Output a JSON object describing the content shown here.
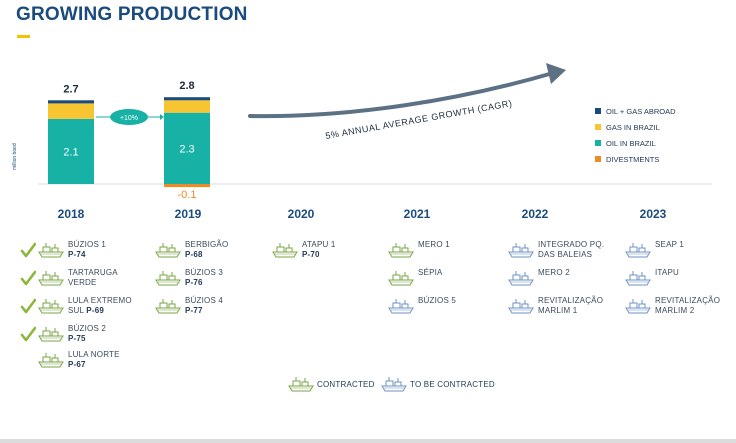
{
  "page": {
    "title": "GROWING PRODUCTION"
  },
  "colors": {
    "oil_brazil": "#18b1a5",
    "gas_brazil": "#f7c531",
    "oil_gas_abroad": "#1a4b7c",
    "divestments": "#f08a22",
    "arrow": "#5d7185",
    "check": "#8db63c",
    "ship_contracted": "#7aa644",
    "ship_to_be": "#6f93c4"
  },
  "chart_data": {
    "type": "bar",
    "stacked": true,
    "categories": [
      "2018",
      "2019"
    ],
    "ylabel": "million boed",
    "series": [
      {
        "name": "OIL IN BRAZIL",
        "color": "#18b1a5",
        "values": [
          2.1,
          2.3
        ],
        "labels": [
          "2.1",
          "2.3"
        ]
      },
      {
        "name": "GAS IN BRAZIL",
        "color": "#f7c531",
        "values": [
          0.5,
          0.4
        ]
      },
      {
        "name": "OIL + GAS ABROAD",
        "color": "#1a4b7c",
        "values": [
          0.1,
          0.1
        ]
      },
      {
        "name": "DIVESTMENTS",
        "color": "#f08a22",
        "values": [
          0,
          -0.1
        ],
        "labels": [
          "",
          "-0.1"
        ]
      }
    ],
    "totals": [
      "2.7",
      "2.8"
    ],
    "growth_badge": "+10%",
    "trend_label": "5% ANNUAL AVERAGE GROWTH (CAGR)",
    "legend": [
      "OIL + GAS ABROAD",
      "GAS IN BRAZIL",
      "OIL IN BRAZIL",
      "DIVESTMENTS"
    ],
    "legend_position": "right"
  },
  "years": [
    "2018",
    "2019",
    "2020",
    "2021",
    "2022",
    "2023"
  ],
  "projects": [
    {
      "year": "2018",
      "name": "BÚZIOS 1",
      "unit": "P-74",
      "status": "contracted",
      "check": true
    },
    {
      "year": "2018",
      "name": "TARTARUGA",
      "name2": "VERDE",
      "status": "contracted",
      "check": true
    },
    {
      "year": "2018",
      "name": "LULA EXTREMO",
      "name2": "SUL",
      "unit": "P-69",
      "status": "contracted",
      "check": true
    },
    {
      "year": "2018",
      "name": "BÚZIOS 2",
      "unit": "P-75",
      "status": "contracted",
      "check": true
    },
    {
      "year": "2018",
      "name": "LULA NORTE",
      "unit": "P-67",
      "status": "contracted",
      "check": false
    },
    {
      "year": "2019",
      "name": "BERBIGÃO",
      "unit": "P-68",
      "status": "contracted"
    },
    {
      "year": "2019",
      "name": "BÚZIOS 3",
      "unit": "P-76",
      "status": "contracted"
    },
    {
      "year": "2019",
      "name": "BÚZIOS 4",
      "unit": "P-77",
      "status": "contracted"
    },
    {
      "year": "2020",
      "name": "ATAPU 1",
      "unit": "P-70",
      "status": "contracted"
    },
    {
      "year": "2021",
      "name": "MERO 1",
      "status": "contracted"
    },
    {
      "year": "2021",
      "name": "SÉPIA",
      "status": "contracted"
    },
    {
      "year": "2021",
      "name": "BÚZIOS 5",
      "status": "to_be_contracted"
    },
    {
      "year": "2022",
      "name": "INTEGRADO PQ.",
      "name2": "DAS BALEIAS",
      "status": "to_be_contracted"
    },
    {
      "year": "2022",
      "name": "MERO 2",
      "status": "to_be_contracted"
    },
    {
      "year": "2022",
      "name": "REVITALIZAÇÃO",
      "name2": "MARLIM 1",
      "status": "to_be_contracted"
    },
    {
      "year": "2023",
      "name": "SEAP 1",
      "status": "to_be_contracted"
    },
    {
      "year": "2023",
      "name": "ITAPU",
      "status": "to_be_contracted"
    },
    {
      "year": "2023",
      "name": "REVITALIZAÇÃO",
      "name2": "MARLIM 2",
      "status": "to_be_contracted"
    }
  ],
  "status_legend": {
    "contracted": "CONTRACTED",
    "to_be_contracted": "TO BE CONTRACTED"
  }
}
